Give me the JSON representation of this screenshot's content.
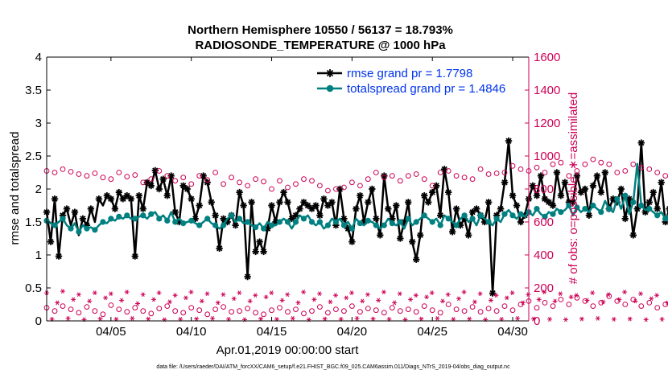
{
  "chart_data": {
    "type": "line",
    "title": [
      "Northern Hemisphere 10550 / 56137 = 18.793%",
      "RADIOSONDE_TEMPERATURE @ 1000 hPa"
    ],
    "xlabel": "Apr.01,2019 00:00:00 start",
    "ylabel": "rmse and totalspread",
    "y2label": "# of obs: o=possible; ∗=assimilated",
    "xlim": [
      1,
      31
    ],
    "ylim": [
      0,
      4
    ],
    "y2lim": [
      0,
      1600
    ],
    "x_ticks": [
      5,
      10,
      15,
      20,
      25,
      30
    ],
    "x_tick_labels": [
      "04/05",
      "04/10",
      "04/15",
      "04/20",
      "04/25",
      "04/30"
    ],
    "y_ticks": [
      "0",
      "0.5",
      "1",
      "1.5",
      "2",
      "2.5",
      "3",
      "3.5",
      "4"
    ],
    "y2_ticks": [
      "0",
      "200",
      "400",
      "600",
      "800",
      "1000",
      "1200",
      "1400",
      "1600"
    ],
    "legend": [
      {
        "label": "rmse grand pr = 1.7798",
        "color": "#000000",
        "marker": "star"
      },
      {
        "label": "totalspread grand pr = 1.4846",
        "color": "#008080",
        "marker": "circle"
      }
    ],
    "footnote": "data file: /Users/raeder/DAI/ATM_forcXX/CAM6_setup/f.e21.FHIST_BGC.f09_025.CAM6assim.011/Diags_NTrS_2019-04/obs_diag_output.nc",
    "series": [
      {
        "name": "rmse",
        "color": "#000000",
        "x_start": 1.0,
        "x_step": 0.25,
        "values": [
          1.65,
          1.2,
          1.85,
          0.98,
          1.6,
          1.7,
          1.45,
          1.65,
          1.3,
          1.55,
          1.45,
          1.7,
          1.5,
          1.85,
          1.75,
          1.9,
          1.85,
          1.7,
          1.95,
          1.85,
          1.9,
          1.85,
          0.98,
          1.9,
          1.7,
          2.1,
          2.05,
          2.28,
          2.0,
          2.15,
          1.9,
          2.2,
          1.65,
          1.5,
          2.05,
          2.0,
          1.85,
          1.55,
          1.75,
          2.2,
          2.1,
          1.8,
          1.6,
          1.1,
          1.55,
          1.5,
          1.6,
          1.45,
          1.95,
          1.75,
          0.67,
          1.8,
          1.05,
          1.2,
          1.05,
          1.4,
          1.75,
          1.5,
          1.8,
          1.95,
          1.8,
          1.55,
          1.6,
          1.7,
          1.8,
          1.75,
          1.7,
          1.75,
          1.6,
          1.85,
          1.75,
          1.8,
          1.45,
          2.0,
          1.55,
          1.4,
          1.2,
          1.7,
          1.9,
          1.5,
          1.8,
          2.0,
          1.55,
          1.3,
          2.2,
          1.7,
          1.55,
          1.75,
          1.25,
          1.5,
          1.8,
          1.2,
          0.93,
          1.3,
          1.9,
          1.8,
          1.95,
          2.05,
          1.6,
          2.3,
          1.95,
          1.35,
          1.7,
          1.45,
          1.55,
          1.3,
          1.65,
          1.7,
          1.6,
          1.5,
          1.8,
          0.42,
          1.6,
          1.7,
          2.1,
          2.73,
          1.9,
          1.75,
          1.5,
          1.6,
          1.85,
          2.05,
          1.9,
          2.2,
          1.85,
          1.8,
          1.75,
          2.25,
          1.9,
          2.1,
          1.8,
          1.8,
          2.2,
          1.95,
          2.0,
          1.6,
          2.05,
          2.2,
          1.95,
          2.25,
          1.7,
          1.85,
          1.8,
          2.0,
          1.55,
          1.85,
          1.3,
          1.7,
          2.7,
          1.65,
          1.8,
          1.95,
          1.7,
          2.1,
          1.5,
          1.7,
          1.55,
          1.85,
          1.65,
          2.0,
          3.14,
          1.95,
          1.6,
          1.2,
          1.95,
          0.72
        ],
        "markers": [
          0,
          1,
          2,
          3,
          4,
          5,
          7,
          9,
          10,
          11,
          13,
          15,
          16,
          17,
          18,
          19,
          20,
          21,
          22,
          23,
          24,
          25,
          26,
          27,
          28,
          29,
          30,
          31,
          32,
          33,
          34,
          35,
          36,
          37,
          38,
          39,
          40,
          41,
          42,
          43,
          44,
          45,
          46,
          47,
          48,
          49,
          50,
          51,
          52,
          53,
          54,
          55,
          56,
          57,
          58,
          59,
          60,
          61,
          62,
          63,
          64,
          65,
          66,
          67,
          68,
          69,
          70,
          71,
          72,
          73,
          74,
          75,
          76,
          77,
          78,
          79,
          80,
          81,
          82,
          83,
          84,
          85,
          86,
          87,
          88,
          89,
          90,
          91,
          92,
          93,
          94,
          95,
          96,
          97,
          98,
          99,
          100,
          101,
          102,
          103,
          104,
          105,
          106,
          107,
          108,
          109,
          110,
          111,
          112,
          113,
          114,
          115,
          116,
          117,
          118,
          119,
          120,
          121,
          122,
          123,
          124,
          125,
          126,
          127,
          128,
          129,
          130,
          131,
          132,
          133,
          134,
          135,
          136,
          137,
          138,
          139,
          140,
          141,
          142,
          143,
          144,
          145,
          146,
          147,
          148,
          149,
          150,
          151,
          152,
          153,
          154,
          155,
          156,
          157,
          158,
          159,
          160,
          161,
          162,
          163,
          164,
          165,
          166,
          167
        ]
      },
      {
        "name": "totalspread",
        "color": "#008080",
        "x_start": 1.0,
        "x_step": 0.25,
        "values": [
          1.52,
          1.48,
          1.45,
          1.5,
          1.55,
          1.45,
          1.4,
          1.48,
          1.35,
          1.45,
          1.4,
          1.42,
          1.38,
          1.45,
          1.5,
          1.48,
          1.55,
          1.52,
          1.58,
          1.55,
          1.6,
          1.55,
          1.55,
          1.58,
          1.6,
          1.55,
          1.62,
          1.65,
          1.55,
          1.6,
          1.52,
          1.65,
          1.5,
          1.55,
          1.48,
          1.5,
          1.52,
          1.48,
          1.45,
          1.5,
          1.55,
          1.48,
          1.45,
          1.4,
          1.45,
          1.55,
          1.6,
          1.5,
          1.55,
          1.48,
          1.5,
          1.45,
          1.42,
          1.48,
          1.4,
          1.5,
          1.45,
          1.45,
          1.5,
          1.55,
          1.5,
          1.4,
          1.5,
          1.6,
          1.55,
          1.6,
          1.5,
          1.45,
          1.5,
          1.4,
          1.45,
          1.55,
          1.5,
          1.55,
          1.45,
          1.5,
          1.4,
          1.55,
          1.48,
          1.45,
          1.52,
          1.5,
          1.45,
          1.4,
          1.45,
          1.55,
          1.48,
          1.45,
          1.5,
          1.4,
          1.55,
          1.45,
          1.5,
          1.55,
          1.6,
          1.55,
          1.5,
          1.55,
          1.45,
          1.6,
          1.55,
          1.5,
          1.45,
          1.55,
          1.6,
          1.5,
          1.55,
          1.45,
          1.6,
          1.55,
          1.5,
          1.45,
          1.55,
          1.5,
          1.62,
          1.68,
          1.6,
          1.55,
          1.62,
          1.58,
          1.65,
          1.6,
          1.7,
          1.62,
          1.58,
          1.65,
          1.62,
          1.7,
          1.65,
          1.68,
          1.75,
          1.6,
          1.72,
          1.65,
          1.7,
          1.65,
          1.75,
          1.7,
          1.65,
          1.82,
          1.7,
          1.65,
          1.85,
          1.7,
          1.9,
          1.62,
          1.8,
          2.38,
          1.75,
          1.68,
          1.7,
          1.65,
          1.6,
          1.65,
          1.55,
          1.62,
          1.6,
          1.58,
          1.55,
          1.6,
          1.55,
          1.5,
          1.58,
          1.45,
          1.6,
          1.6
        ],
        "markers": [
          0,
          2,
          4,
          6,
          8,
          10,
          12,
          14,
          16,
          18,
          20,
          22,
          24,
          26,
          28,
          30,
          32,
          34,
          36,
          38,
          40,
          42,
          44,
          46,
          48,
          50,
          52,
          54,
          56,
          58,
          60,
          62,
          64,
          66,
          68,
          70,
          72,
          74,
          76,
          78,
          80,
          82,
          84,
          86,
          88,
          90,
          92,
          94,
          96,
          98,
          100,
          102,
          104,
          106,
          108,
          110,
          112,
          114,
          116,
          118,
          120,
          122,
          124,
          126,
          128,
          130,
          132,
          134,
          136,
          138,
          140,
          142,
          144,
          146,
          148,
          150,
          152,
          154,
          156,
          158,
          160,
          162,
          164,
          166
        ]
      },
      {
        "name": "possible obs (upper)",
        "color": "#cc0055",
        "marker": "open-circle",
        "axis": "right",
        "x_start": 1.0,
        "x_step": 0.5,
        "values": [
          910,
          900,
          920,
          905,
          890,
          880,
          895,
          870,
          860,
          900,
          875,
          885,
          840,
          860,
          910,
          880,
          850,
          870,
          830,
          880,
          855,
          900,
          830,
          870,
          840,
          820,
          860,
          845,
          800,
          850,
          810,
          830,
          860,
          850,
          820,
          790,
          800,
          810,
          840,
          820,
          860,
          900,
          870,
          880,
          850,
          880,
          890,
          860,
          820,
          900,
          910,
          880,
          870,
          860,
          920,
          890,
          895,
          900,
          940,
          920,
          910,
          930,
          900,
          950,
          960,
          880,
          910,
          950,
          980,
          960,
          950,
          900,
          910,
          950,
          930,
          920,
          900,
          880,
          870,
          900,
          880,
          860,
          900,
          870,
          850,
          880,
          870,
          900,
          880,
          860,
          850,
          910,
          890,
          880,
          870,
          900,
          880,
          920,
          900,
          920,
          880,
          860,
          850,
          900,
          870,
          880,
          860,
          890,
          880,
          900,
          870,
          900,
          890,
          880,
          850,
          880,
          900,
          870,
          880,
          900,
          910,
          900,
          920,
          910,
          890,
          880,
          900,
          870,
          880,
          860,
          900,
          920,
          910,
          880,
          900,
          890,
          880,
          870,
          900,
          910,
          920,
          900
        ]
      },
      {
        "name": "possible obs (lower)",
        "color": "#cc0055",
        "marker": "open-circle",
        "axis": "right",
        "x_start": 1.0,
        "x_step": 0.5,
        "values": [
          80,
          60,
          90,
          70,
          50,
          85,
          60,
          40,
          95,
          70,
          55,
          80,
          60,
          45,
          75,
          90,
          60,
          50,
          80,
          65,
          40,
          70,
          85,
          55,
          60,
          75,
          50,
          40,
          65,
          80,
          55,
          70,
          45,
          60,
          85,
          50,
          70,
          60,
          90,
          55,
          75,
          65,
          50,
          80,
          60,
          70,
          55,
          90,
          65,
          50,
          100,
          70,
          60,
          85,
          55,
          75,
          60,
          90,
          65,
          100,
          120,
          80,
          110,
          90,
          130,
          100,
          140,
          120,
          90,
          110,
          150,
          120,
          100,
          130,
          90,
          110,
          80,
          100,
          70,
          95,
          60,
          85,
          75,
          100,
          60,
          80,
          50,
          90,
          70,
          60,
          85,
          50,
          75,
          60,
          90,
          65,
          80,
          55,
          100,
          70,
          85,
          60,
          95,
          75,
          50,
          80,
          65,
          110,
          70,
          55,
          85,
          100,
          60,
          75,
          90,
          50,
          70,
          85,
          60,
          95,
          75,
          55,
          80,
          65,
          90,
          70,
          50,
          85,
          60,
          75,
          90,
          55,
          70,
          45,
          85,
          60,
          75,
          50,
          65,
          80,
          55,
          40
        ]
      },
      {
        "name": "assimilated obs",
        "color": "#cc0055",
        "marker": "asterisk",
        "axis": "right",
        "x_start": 1.0,
        "x_step": 0.333,
        "values": [
          170,
          10,
          110,
          180,
          15,
          130,
          160,
          8,
          120,
          170,
          12,
          140,
          165,
          10,
          125,
          175,
          15,
          105,
          160,
          12,
          130,
          170,
          8,
          115,
          155,
          10,
          140,
          175,
          12,
          120,
          165,
          15,
          110,
          160,
          10,
          135,
          170,
          8,
          120,
          155,
          12,
          145,
          170,
          10,
          125,
          160,
          15,
          110,
          175,
          8,
          130,
          165,
          12,
          115,
          155,
          10,
          140,
          170,
          15,
          120,
          160,
          12,
          125,
          175,
          10,
          110,
          165,
          8,
          130,
          155,
          12,
          145,
          170,
          15,
          120,
          160,
          10,
          135,
          175,
          12,
          115,
          165,
          8,
          125,
          155,
          10,
          140,
          170,
          15,
          110,
          160,
          12,
          130,
          175,
          10,
          120,
          165,
          8,
          145,
          155,
          12,
          125,
          170,
          15,
          115,
          160,
          10,
          130,
          175,
          12,
          120,
          165,
          8,
          135,
          155,
          10,
          110,
          170,
          15,
          125,
          160,
          12,
          140,
          175,
          10,
          120,
          165,
          8,
          130,
          155,
          12,
          115,
          170,
          15,
          145,
          160,
          10,
          125,
          175,
          12,
          110,
          165,
          8,
          130,
          155,
          10,
          120,
          170,
          15,
          135,
          160,
          12,
          115,
          175,
          10,
          125,
          165,
          8,
          140,
          155,
          12,
          120,
          170,
          15,
          110,
          160,
          10,
          130,
          175,
          12,
          5,
          130,
          180,
          10,
          125
        ]
      }
    ]
  }
}
